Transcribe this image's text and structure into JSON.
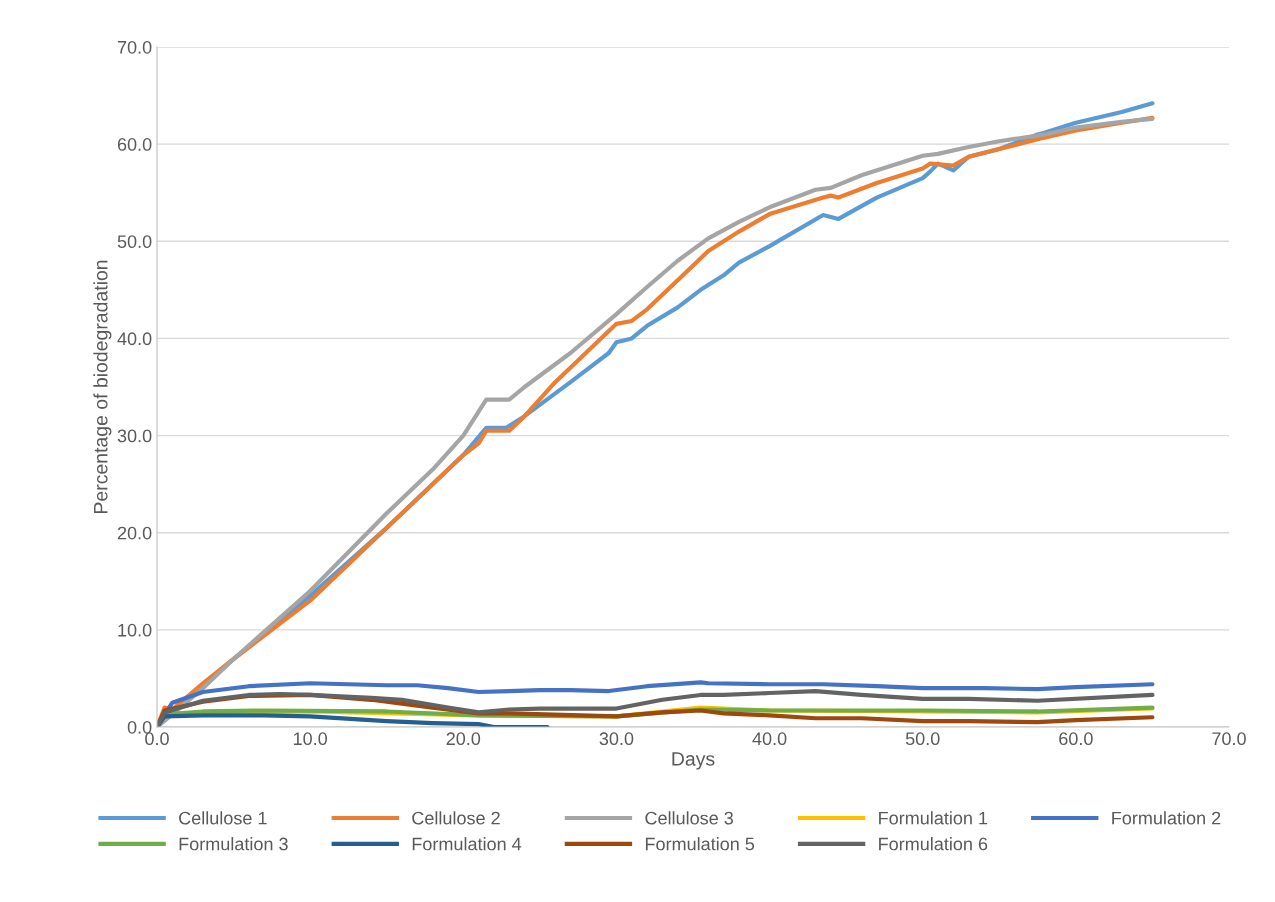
{
  "chart_data": {
    "type": "line",
    "xlabel": "Days",
    "ylabel": "Percentage of biodegradation",
    "xlim": [
      0,
      70
    ],
    "ylim": [
      0,
      70
    ],
    "xticks": [
      {
        "value": 0,
        "label": "0.0"
      },
      {
        "value": 10,
        "label": "10.0"
      },
      {
        "value": 20,
        "label": "20.0"
      },
      {
        "value": 30,
        "label": "30.0"
      },
      {
        "value": 40,
        "label": "40.0"
      },
      {
        "value": 50,
        "label": "50.0"
      },
      {
        "value": 60,
        "label": "60.0"
      },
      {
        "value": 70,
        "label": "70.0"
      }
    ],
    "yticks": [
      {
        "value": 0,
        "label": "0.0"
      },
      {
        "value": 10,
        "label": "10.0"
      },
      {
        "value": 20,
        "label": "20.0"
      },
      {
        "value": 30,
        "label": "30.0"
      },
      {
        "value": 40,
        "label": "40.0"
      },
      {
        "value": 50,
        "label": "50.0"
      },
      {
        "value": 60,
        "label": "60.0"
      },
      {
        "value": 70,
        "label": "70.0"
      }
    ],
    "grid": "y",
    "legend": "bottom",
    "marker": "none",
    "line_style": "solid",
    "series": [
      {
        "name": "Cellulose 1",
        "color": "#5b9bd5",
        "x": [
          0,
          1,
          5,
          10,
          15,
          20,
          21.5,
          22.8,
          24,
          27,
          29.5,
          30,
          31,
          32,
          34,
          35.5,
          37,
          38,
          40,
          43.5,
          44.5,
          47,
          50,
          50.5,
          51,
          52,
          53,
          55,
          57.5,
          58,
          60,
          63,
          65
        ],
        "values": [
          0,
          1.5,
          7,
          13.5,
          20.5,
          28,
          30.8,
          30.8,
          32,
          35.5,
          38.5,
          39.6,
          40,
          41.3,
          43.2,
          45,
          46.5,
          47.8,
          49.5,
          52.7,
          52.3,
          54.5,
          56.5,
          57.2,
          58,
          57.3,
          58.7,
          59.5,
          61,
          61.2,
          62.2,
          63.3,
          64.2
        ]
      },
      {
        "name": "Cellulose 2",
        "color": "#ed7d31",
        "x": [
          0,
          0.5,
          1,
          3,
          5,
          10,
          15,
          20,
          21,
          21.5,
          23,
          24,
          26,
          28,
          30,
          31,
          32,
          34,
          36,
          38,
          40,
          43.5,
          44,
          44.5,
          47,
          50,
          50.5,
          52,
          53,
          55,
          57.5,
          60,
          63,
          65
        ],
        "values": [
          0,
          2,
          1.8,
          4.5,
          7,
          13,
          20.5,
          28,
          29.2,
          30.5,
          30.5,
          32,
          35.5,
          38.5,
          41.5,
          41.8,
          43,
          46,
          49,
          51,
          52.8,
          54.5,
          54.7,
          54.5,
          56,
          57.5,
          58,
          57.8,
          58.7,
          59.5,
          60.5,
          61.4,
          62.2,
          62.7
        ]
      },
      {
        "name": "Cellulose 3",
        "color": "#a5a5a5",
        "x": [
          0,
          1,
          3,
          5,
          10,
          15,
          18,
          20,
          21.5,
          23,
          24,
          27,
          30,
          32,
          34,
          36,
          38,
          40,
          43,
          44,
          46,
          50,
          51,
          53,
          55,
          58,
          60,
          63,
          65
        ],
        "values": [
          0,
          1.3,
          4,
          7,
          14,
          22,
          26.5,
          30,
          33.7,
          33.7,
          35,
          38.5,
          42.5,
          45.3,
          48,
          50.3,
          52,
          53.5,
          55.3,
          55.5,
          56.8,
          58.8,
          59,
          59.7,
          60.3,
          61,
          61.7,
          62.3,
          62.6
        ]
      },
      {
        "name": "Formulation 1",
        "color": "#ffc000",
        "x": [
          3,
          10,
          21,
          30,
          35.5,
          40,
          50,
          57.5,
          65
        ],
        "values": [
          1.4,
          1.6,
          1.2,
          1.1,
          2.0,
          1.7,
          1.6,
          1.5,
          1.9
        ]
      },
      {
        "name": "Formulation 2",
        "color": "#4472c4",
        "x": [
          0,
          1,
          3,
          6,
          10,
          15,
          17,
          19,
          21,
          23,
          25,
          27,
          29.5,
          32,
          35.5,
          36,
          40,
          43.5,
          47,
          50,
          54,
          57.5,
          60,
          65
        ],
        "values": [
          0,
          2.5,
          3.6,
          4.2,
          4.5,
          4.3,
          4.3,
          4.0,
          3.6,
          3.7,
          3.8,
          3.8,
          3.7,
          4.2,
          4.6,
          4.5,
          4.4,
          4.4,
          4.2,
          4.0,
          4.0,
          3.9,
          4.1,
          4.4
        ]
      },
      {
        "name": "Formulation 3",
        "color": "#70ad47",
        "x": [
          0,
          0.5,
          3,
          7,
          15,
          21,
          30,
          35.5,
          40,
          50,
          57.5,
          65
        ],
        "values": [
          0,
          1.3,
          1.6,
          1.7,
          1.6,
          1.2,
          1.1,
          1.8,
          1.7,
          1.7,
          1.6,
          2.0
        ]
      },
      {
        "name": "Formulation 4",
        "color": "#255e91",
        "x": [
          0,
          0.5,
          3,
          7,
          10,
          15,
          18,
          21,
          22,
          23,
          25.5
        ],
        "values": [
          0,
          1.1,
          1.2,
          1.2,
          1.1,
          0.6,
          0.4,
          0.3,
          0.0,
          0.0,
          0.0
        ]
      },
      {
        "name": "Formulation 5",
        "color": "#9e480e",
        "x": [
          0,
          0.5,
          3,
          6,
          10,
          14,
          18,
          21,
          23,
          30,
          33,
          35.5,
          37,
          40,
          43,
          46,
          50,
          53,
          57.5,
          60,
          65
        ],
        "values": [
          0,
          1.7,
          2.6,
          3.2,
          3.3,
          2.8,
          2.0,
          1.4,
          1.4,
          1.1,
          1.5,
          1.7,
          1.4,
          1.2,
          0.9,
          0.9,
          0.6,
          0.6,
          0.5,
          0.7,
          1.0
        ]
      },
      {
        "name": "Formulation 6",
        "color": "#636363",
        "x": [
          0,
          0.5,
          3,
          6,
          8,
          10,
          14,
          16,
          19,
          21,
          23,
          25,
          30,
          33,
          35.5,
          37,
          40,
          43,
          46,
          50,
          53,
          57.5,
          65
        ],
        "values": [
          0,
          1.5,
          2.7,
          3.3,
          3.4,
          3.3,
          3.0,
          2.8,
          2.0,
          1.5,
          1.8,
          1.9,
          1.9,
          2.8,
          3.3,
          3.3,
          3.5,
          3.7,
          3.3,
          2.9,
          2.9,
          2.7,
          3.3
        ]
      }
    ]
  }
}
